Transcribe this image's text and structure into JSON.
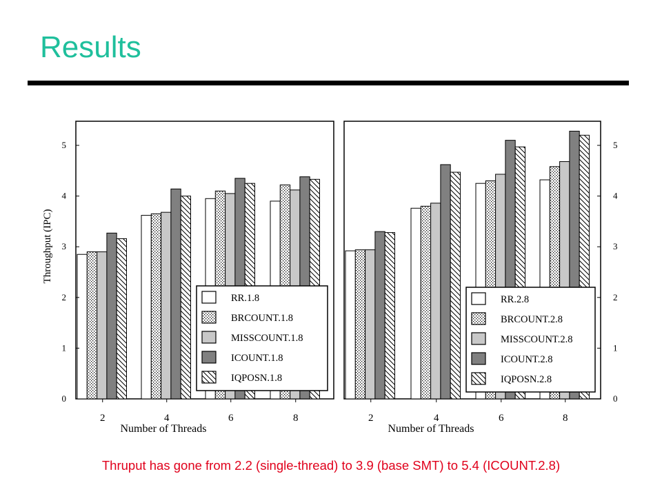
{
  "colors": {
    "title": "#1fbf9c",
    "caption": "#e0001b",
    "text": "#000000"
  },
  "slide": {
    "title": "Results",
    "caption": "Thruput has gone from 2.2 (single-thread) to 3.9 (base SMT) to 5.4 (ICOUNT.2.8)"
  },
  "chart_data": [
    {
      "type": "bar",
      "categories": [
        "2",
        "4",
        "6",
        "8"
      ],
      "xlabel": "Number of Threads",
      "ylabel": "Throughput (IPC)",
      "ylim": [
        0,
        5.5
      ],
      "yticks": [
        "0",
        "1",
        "2",
        "3",
        "4",
        "5"
      ],
      "legend_position": "bottom-right",
      "series": [
        {
          "name": "RR.1.8",
          "pattern": "white",
          "values": [
            2.85,
            3.62,
            3.95,
            3.9
          ]
        },
        {
          "name": "BRCOUNT.1.8",
          "pattern": "dots",
          "values": [
            2.9,
            3.65,
            4.1,
            4.22
          ]
        },
        {
          "name": "MISSCOUNT.1.8",
          "pattern": "light-gray",
          "values": [
            2.9,
            3.68,
            4.05,
            4.12
          ]
        },
        {
          "name": "ICOUNT.1.8",
          "pattern": "dark-gray",
          "values": [
            3.27,
            4.14,
            4.35,
            4.38
          ]
        },
        {
          "name": "IQPOSN.1.8",
          "pattern": "diagonal",
          "values": [
            3.16,
            4.0,
            4.25,
            4.33
          ]
        }
      ]
    },
    {
      "type": "bar",
      "categories": [
        "2",
        "4",
        "6",
        "8"
      ],
      "xlabel": "Number of Threads",
      "ylabel": "",
      "ylim": [
        0,
        5.5
      ],
      "yticks": [
        "0",
        "1",
        "2",
        "3",
        "4",
        "5"
      ],
      "legend_position": "bottom-right",
      "series": [
        {
          "name": "RR.2.8",
          "pattern": "white",
          "values": [
            2.92,
            3.76,
            4.25,
            4.32
          ]
        },
        {
          "name": "BRCOUNT.2.8",
          "pattern": "dots",
          "values": [
            2.94,
            3.8,
            4.3,
            4.58
          ]
        },
        {
          "name": "MISSCOUNT.2.8",
          "pattern": "light-gray",
          "values": [
            2.94,
            3.86,
            4.43,
            4.68
          ]
        },
        {
          "name": "ICOUNT.2.8",
          "pattern": "dark-gray",
          "values": [
            3.3,
            4.62,
            5.1,
            5.28
          ]
        },
        {
          "name": "IQPOSN.2.8",
          "pattern": "diagonal",
          "values": [
            3.28,
            4.47,
            4.97,
            5.2
          ]
        }
      ]
    }
  ]
}
